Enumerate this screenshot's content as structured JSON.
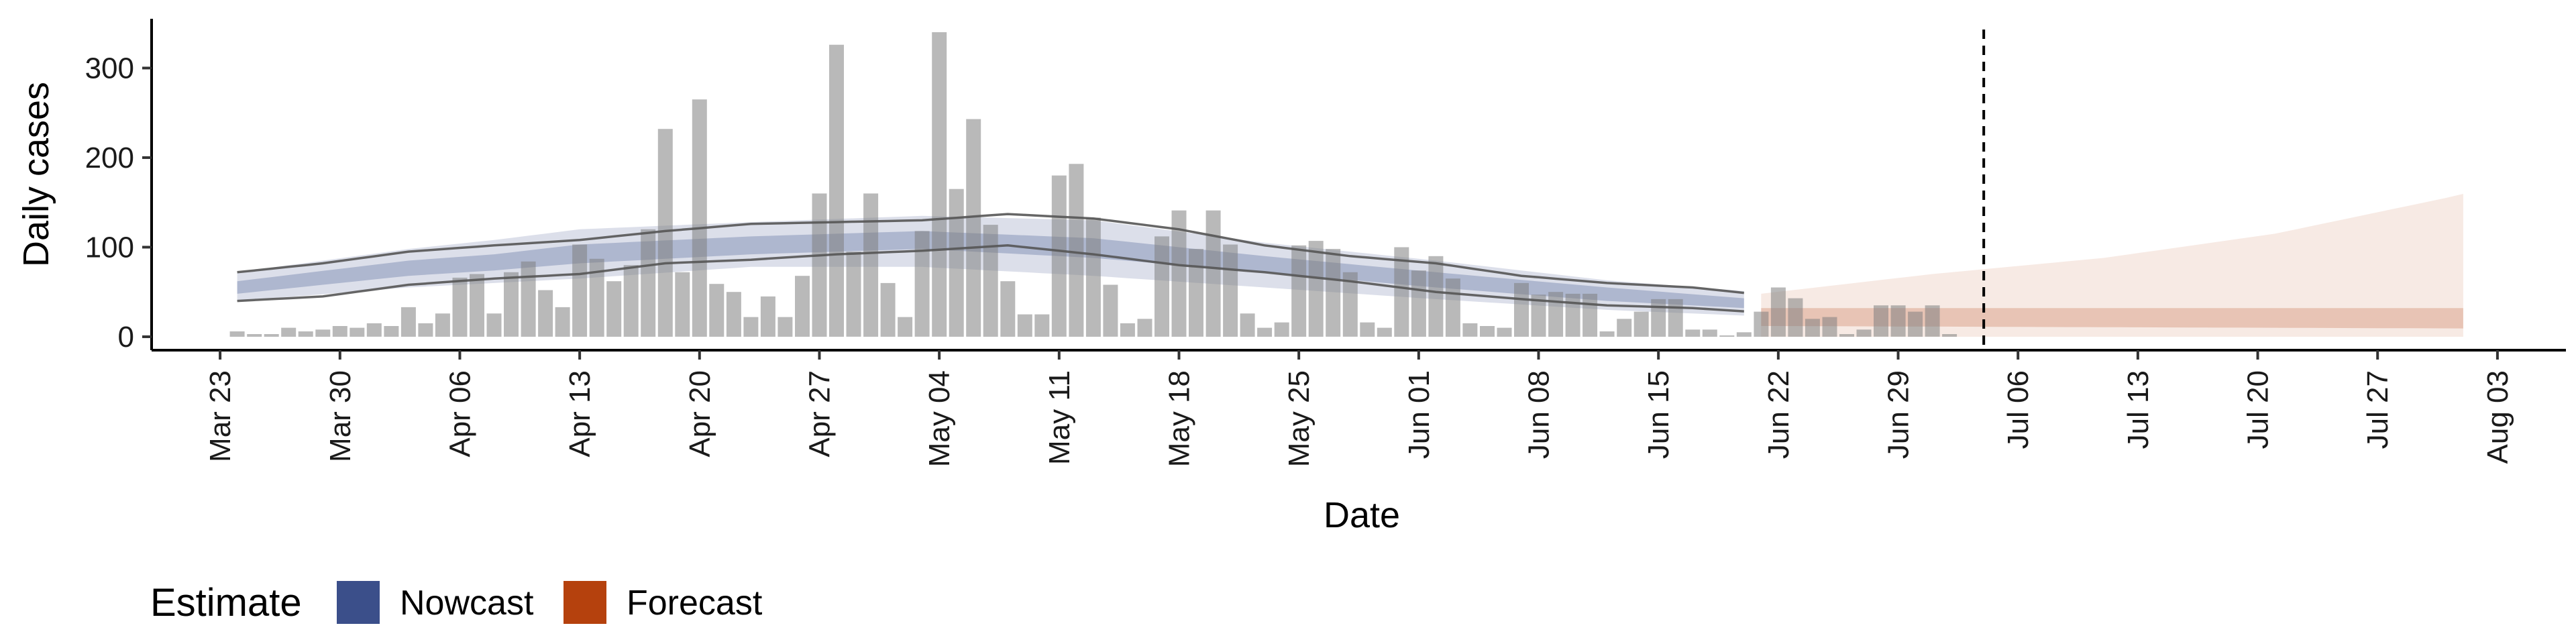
{
  "chart_data": {
    "type": "bar",
    "title": "",
    "xlabel": "Date",
    "ylabel": "Daily cases",
    "x_type": "date",
    "xlim": [
      "2020-03-19",
      "2020-08-07"
    ],
    "ylim": [
      -15,
      355
    ],
    "y_ticks": [
      0,
      100,
      200,
      300
    ],
    "x_ticks": [
      {
        "date": "2020-03-23",
        "label": "Mar 23"
      },
      {
        "date": "2020-03-30",
        "label": "Mar 30"
      },
      {
        "date": "2020-04-06",
        "label": "Apr 06"
      },
      {
        "date": "2020-04-13",
        "label": "Apr 13"
      },
      {
        "date": "2020-04-20",
        "label": "Apr 20"
      },
      {
        "date": "2020-04-27",
        "label": "Apr 27"
      },
      {
        "date": "2020-05-04",
        "label": "May 04"
      },
      {
        "date": "2020-05-11",
        "label": "May 11"
      },
      {
        "date": "2020-05-18",
        "label": "May 18"
      },
      {
        "date": "2020-05-25",
        "label": "May 25"
      },
      {
        "date": "2020-06-01",
        "label": "Jun 01"
      },
      {
        "date": "2020-06-08",
        "label": "Jun 08"
      },
      {
        "date": "2020-06-15",
        "label": "Jun 15"
      },
      {
        "date": "2020-06-22",
        "label": "Jun 22"
      },
      {
        "date": "2020-06-29",
        "label": "Jun 29"
      },
      {
        "date": "2020-07-06",
        "label": "Jul 06"
      },
      {
        "date": "2020-07-13",
        "label": "Jul 13"
      },
      {
        "date": "2020-07-20",
        "label": "Jul 20"
      },
      {
        "date": "2020-07-27",
        "label": "Jul 27"
      },
      {
        "date": "2020-08-03",
        "label": "Aug 03"
      }
    ],
    "bars_start_date": "2020-03-24",
    "bars": [
      6,
      3,
      3,
      10,
      6,
      8,
      12,
      10,
      15,
      12,
      33,
      15,
      26,
      66,
      70,
      26,
      72,
      84,
      52,
      33,
      103,
      87,
      62,
      80,
      120,
      232,
      72,
      265,
      59,
      50,
      22,
      45,
      22,
      68,
      160,
      326,
      95,
      160,
      60,
      22,
      118,
      340,
      165,
      243,
      125,
      62,
      25,
      25,
      180,
      193,
      133,
      58,
      15,
      20,
      112,
      141,
      98,
      141,
      103,
      26,
      10,
      16,
      102,
      107,
      98,
      72,
      16,
      10,
      100,
      74,
      90,
      65,
      15,
      12,
      10,
      60,
      47,
      50,
      48,
      48,
      6,
      20,
      28,
      42,
      42,
      8,
      8,
      0,
      5,
      28,
      55,
      43,
      20,
      22,
      3,
      8,
      35,
      35,
      28,
      35,
      3
    ],
    "estimate_legend_title": "Estimate",
    "series": [
      {
        "name": "Nowcast",
        "color": "#3b4f8a"
      },
      {
        "name": "Forecast",
        "color": "#b5410d"
      }
    ],
    "nowcast": {
      "start_date": "2020-03-24",
      "end_date": "2020-06-20",
      "upper_90": [
        [
          0,
          72
        ],
        [
          10,
          98
        ],
        [
          15,
          108
        ],
        [
          20,
          120
        ],
        [
          30,
          128
        ],
        [
          40,
          135
        ],
        [
          50,
          130
        ],
        [
          60,
          105
        ],
        [
          70,
          85
        ],
        [
          80,
          63
        ],
        [
          90,
          48
        ],
        [
          100,
          40
        ],
        [
          110,
          38
        ],
        [
          118,
          40
        ]
      ],
      "lower_90": [
        [
          0,
          40
        ],
        [
          10,
          55
        ],
        [
          15,
          60
        ],
        [
          20,
          65
        ],
        [
          30,
          78
        ],
        [
          40,
          78
        ],
        [
          50,
          68
        ],
        [
          60,
          55
        ],
        [
          70,
          42
        ],
        [
          80,
          30
        ],
        [
          90,
          22
        ],
        [
          100,
          18
        ],
        [
          110,
          20
        ],
        [
          118,
          22
        ]
      ],
      "upper_50": [
        [
          0,
          62
        ],
        [
          10,
          85
        ],
        [
          15,
          92
        ],
        [
          20,
          103
        ],
        [
          30,
          112
        ],
        [
          40,
          118
        ],
        [
          50,
          110
        ],
        [
          60,
          90
        ],
        [
          70,
          72
        ],
        [
          80,
          55
        ],
        [
          90,
          40
        ],
        [
          100,
          33
        ],
        [
          110,
          32
        ],
        [
          118,
          34
        ]
      ],
      "lower_50": [
        [
          0,
          48
        ],
        [
          10,
          68
        ],
        [
          15,
          74
        ],
        [
          20,
          82
        ],
        [
          30,
          92
        ],
        [
          40,
          98
        ],
        [
          50,
          88
        ],
        [
          60,
          72
        ],
        [
          70,
          55
        ],
        [
          80,
          40
        ],
        [
          90,
          30
        ],
        [
          100,
          24
        ],
        [
          110,
          25
        ],
        [
          118,
          27
        ]
      ]
    },
    "nowcast_lines": {
      "upper": [
        [
          0,
          72
        ],
        [
          5,
          82
        ],
        [
          10,
          95
        ],
        [
          15,
          102
        ],
        [
          20,
          108
        ],
        [
          25,
          118
        ],
        [
          30,
          126
        ],
        [
          35,
          128
        ],
        [
          40,
          130
        ],
        [
          45,
          137
        ],
        [
          50,
          132
        ],
        [
          55,
          120
        ],
        [
          60,
          102
        ],
        [
          65,
          90
        ],
        [
          70,
          82
        ],
        [
          75,
          68
        ],
        [
          80,
          60
        ],
        [
          85,
          55
        ],
        [
          90,
          45
        ],
        [
          95,
          40
        ],
        [
          100,
          37
        ],
        [
          105,
          33
        ],
        [
          110,
          36
        ],
        [
          118,
          40
        ]
      ],
      "lower": [
        [
          0,
          40
        ],
        [
          5,
          45
        ],
        [
          10,
          58
        ],
        [
          15,
          65
        ],
        [
          20,
          70
        ],
        [
          25,
          82
        ],
        [
          30,
          86
        ],
        [
          35,
          92
        ],
        [
          40,
          96
        ],
        [
          45,
          102
        ],
        [
          50,
          92
        ],
        [
          55,
          80
        ],
        [
          60,
          72
        ],
        [
          65,
          62
        ],
        [
          70,
          50
        ],
        [
          75,
          42
        ],
        [
          80,
          35
        ],
        [
          85,
          32
        ],
        [
          90,
          26
        ],
        [
          95,
          20
        ],
        [
          100,
          17
        ],
        [
          105,
          15
        ],
        [
          110,
          18
        ],
        [
          118,
          20
        ]
      ]
    },
    "forecast": {
      "start_date": "2020-06-21",
      "end_date": "2020-08-01",
      "upper_90": [
        [
          0,
          48
        ],
        [
          10,
          70
        ],
        [
          20,
          88
        ],
        [
          30,
          115
        ],
        [
          40,
          155
        ],
        [
          50,
          200
        ],
        [
          57,
          240
        ],
        [
          60,
          260
        ]
      ],
      "lower_90": [
        [
          0,
          0
        ],
        [
          10,
          0
        ],
        [
          20,
          0
        ],
        [
          30,
          0
        ],
        [
          40,
          0
        ],
        [
          50,
          0
        ],
        [
          60,
          0
        ]
      ],
      "upper_50": [
        [
          0,
          32
        ],
        [
          60,
          32
        ]
      ],
      "lower_50": [
        [
          0,
          12
        ],
        [
          60,
          8
        ]
      ]
    },
    "vline_date": "2020-07-04"
  }
}
